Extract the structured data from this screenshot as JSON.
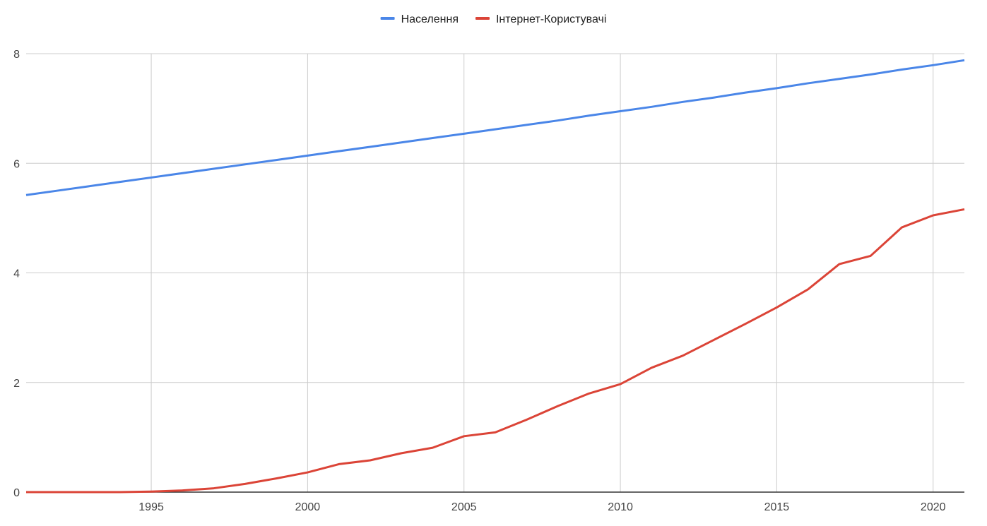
{
  "chart_data": {
    "type": "line",
    "title": "",
    "xlabel": "",
    "ylabel": "",
    "xlim": [
      1991,
      2021
    ],
    "ylim": [
      0,
      8
    ],
    "x_ticks": [
      1995,
      2000,
      2005,
      2010,
      2015,
      2020
    ],
    "y_ticks": [
      0,
      2,
      4,
      6,
      8
    ],
    "x_tick_labels": [
      "1995",
      "2000",
      "2005",
      "2010",
      "2015",
      "2020"
    ],
    "y_tick_labels": [
      "0",
      "2",
      "4",
      "6",
      "8"
    ],
    "grid": true,
    "legend_position": "top",
    "x": [
      1991,
      1992,
      1993,
      1994,
      1995,
      1996,
      1997,
      1998,
      1999,
      2000,
      2001,
      2002,
      2003,
      2004,
      2005,
      2006,
      2007,
      2008,
      2009,
      2010,
      2011,
      2012,
      2013,
      2014,
      2015,
      2016,
      2017,
      2018,
      2019,
      2020,
      2021
    ],
    "series": [
      {
        "name": "Населення",
        "color": "#4a86e8",
        "values": [
          5.42,
          5.5,
          5.58,
          5.66,
          5.74,
          5.82,
          5.9,
          5.98,
          6.06,
          6.14,
          6.22,
          6.3,
          6.38,
          6.46,
          6.54,
          6.62,
          6.7,
          6.78,
          6.87,
          6.95,
          7.03,
          7.12,
          7.2,
          7.29,
          7.37,
          7.46,
          7.54,
          7.62,
          7.71,
          7.79,
          7.88
        ]
      },
      {
        "name": "Інтернет-Користувачі",
        "color": "#db4437",
        "values": [
          0.0,
          0.0,
          0.0,
          0.0,
          0.01,
          0.03,
          0.07,
          0.15,
          0.25,
          0.36,
          0.51,
          0.58,
          0.71,
          0.81,
          1.02,
          1.09,
          1.32,
          1.57,
          1.8,
          1.97,
          2.27,
          2.49,
          2.78,
          3.07,
          3.37,
          3.7,
          4.16,
          4.31,
          4.83,
          5.05,
          5.16
        ]
      }
    ]
  }
}
